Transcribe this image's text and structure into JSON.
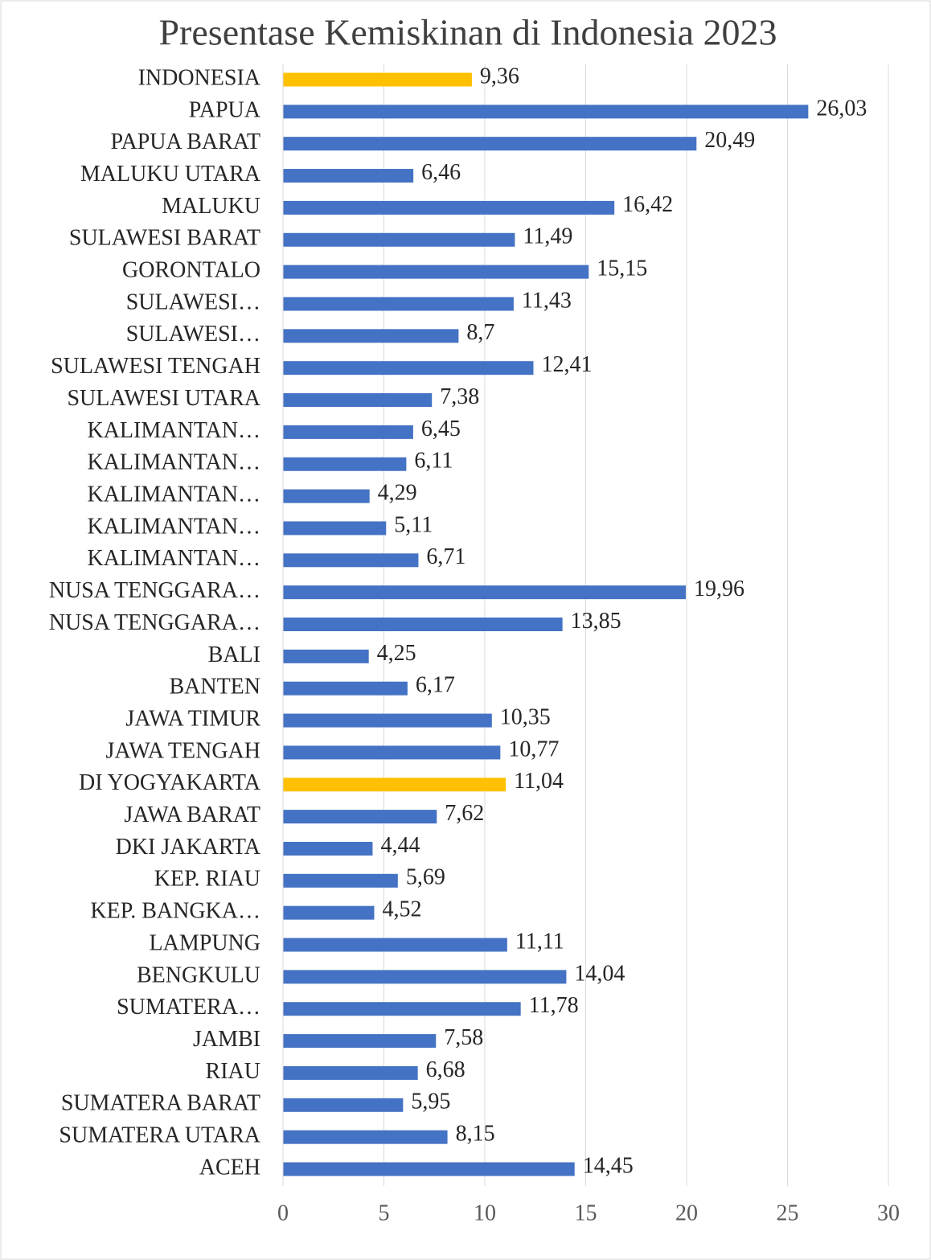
{
  "chart_data": {
    "type": "bar",
    "orientation": "horizontal",
    "title": "Presentase Kemiskinan di Indonesia 2023",
    "categories": [
      "INDONESIA",
      "PAPUA",
      "PAPUA BARAT",
      "MALUKU UTARA",
      "MALUKU",
      "SULAWESI BARAT",
      "GORONTALO",
      "SULAWESI…",
      "SULAWESI…",
      "SULAWESI TENGAH",
      "SULAWESI UTARA",
      "KALIMANTAN…",
      "KALIMANTAN…",
      "KALIMANTAN…",
      "KALIMANTAN…",
      "KALIMANTAN…",
      "NUSA TENGGARA…",
      "NUSA TENGGARA…",
      "BALI",
      "BANTEN",
      "JAWA TIMUR",
      "JAWA TENGAH",
      "DI YOGYAKARTA",
      "JAWA BARAT",
      "DKI JAKARTA",
      "KEP. RIAU",
      "KEP. BANGKA…",
      "LAMPUNG",
      "BENGKULU",
      "SUMATERA…",
      "JAMBI",
      "RIAU",
      "SUMATERA BARAT",
      "SUMATERA UTARA",
      "ACEH"
    ],
    "values": [
      9.36,
      26.03,
      20.49,
      6.46,
      16.42,
      11.49,
      15.15,
      11.43,
      8.7,
      12.41,
      7.38,
      6.45,
      6.11,
      4.29,
      5.11,
      6.71,
      19.96,
      13.85,
      4.25,
      6.17,
      10.35,
      10.77,
      11.04,
      7.62,
      4.44,
      5.69,
      4.52,
      11.11,
      14.04,
      11.78,
      7.58,
      6.68,
      5.95,
      8.15,
      14.45
    ],
    "value_labels": [
      "9,36",
      "26,03",
      "20,49",
      "6,46",
      "16,42",
      "11,49",
      "15,15",
      "11,43",
      "8,7",
      "12,41",
      "7,38",
      "6,45",
      "6,11",
      "4,29",
      "5,11",
      "6,71",
      "19,96",
      "13,85",
      "4,25",
      "6,17",
      "10,35",
      "10,77",
      "11,04",
      "7,62",
      "4,44",
      "5,69",
      "4,52",
      "11,11",
      "14,04",
      "11,78",
      "7,58",
      "6,68",
      "5,95",
      "8,15",
      "14,45"
    ],
    "colors": [
      "#ffc000",
      "#4472c4",
      "#4472c4",
      "#4472c4",
      "#4472c4",
      "#4472c4",
      "#4472c4",
      "#4472c4",
      "#4472c4",
      "#4472c4",
      "#4472c4",
      "#4472c4",
      "#4472c4",
      "#4472c4",
      "#4472c4",
      "#4472c4",
      "#4472c4",
      "#4472c4",
      "#4472c4",
      "#4472c4",
      "#4472c4",
      "#4472c4",
      "#ffc000",
      "#4472c4",
      "#4472c4",
      "#4472c4",
      "#4472c4",
      "#4472c4",
      "#4472c4",
      "#4472c4",
      "#4472c4",
      "#4472c4",
      "#4472c4",
      "#4472c4",
      "#4472c4"
    ],
    "xlim": [
      0,
      30
    ],
    "xticks": [
      0,
      5,
      10,
      15,
      20,
      25,
      30
    ],
    "grid": true
  }
}
